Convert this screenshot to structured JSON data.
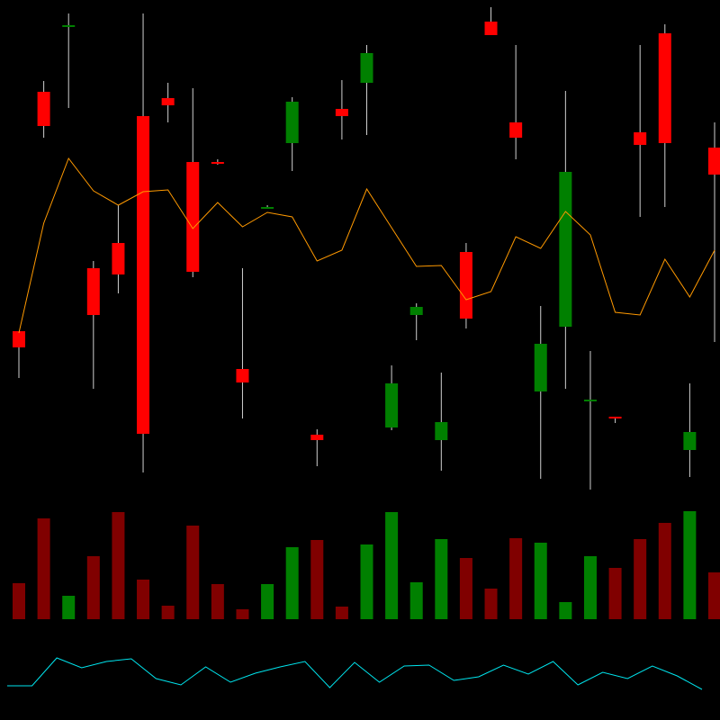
{
  "chart_data": [
    {
      "type": "candlestick",
      "open": [
        432,
        698,
        772,
        502,
        530,
        671,
        691,
        620,
        620,
        390,
        569,
        641,
        317,
        679,
        708,
        325,
        450,
        311,
        520,
        776,
        664,
        365,
        437,
        354,
        337,
        653,
        763,
        300,
        636
      ],
      "high": [
        432,
        710,
        785,
        510,
        572,
        785,
        708,
        702,
        623,
        502,
        572,
        692,
        323,
        711,
        750,
        394,
        463,
        386,
        530,
        792,
        750,
        460,
        699,
        410,
        337,
        750,
        773,
        374,
        664
      ],
      "low": [
        380,
        647,
        680,
        368,
        474,
        275,
        664,
        492,
        617,
        335,
        568,
        610,
        282,
        645,
        650,
        322,
        422,
        277,
        435,
        761,
        623,
        268,
        368,
        256,
        330,
        559,
        570,
        270,
        420
      ],
      "close": [
        414,
        660,
        772,
        450,
        495,
        318,
        683,
        498,
        618,
        375,
        570,
        687,
        311,
        671,
        741,
        374,
        459,
        331,
        446,
        761,
        647,
        418,
        609,
        356,
        335,
        639,
        641,
        320,
        606
      ],
      "up_color": "#008000",
      "down_color": "#ff0000",
      "wick_color": "#d0d0d0",
      "ylim": [
        250,
        800
      ],
      "line": {
        "color": "#ff9900",
        "values": [
          430,
          552,
          624,
          588,
          572,
          587,
          589,
          546,
          575,
          548,
          564,
          559,
          510,
          522,
          590,
          547,
          504,
          505,
          467,
          476,
          537,
          524,
          565,
          539,
          453,
          450,
          512,
          470,
          522
        ]
      }
    },
    {
      "type": "bar",
      "values": [
        40,
        112,
        26,
        70,
        119,
        44,
        15,
        104,
        39,
        11,
        39,
        80,
        88,
        14,
        83,
        119,
        41,
        89,
        68,
        34,
        90,
        85,
        19,
        70,
        57,
        89,
        107,
        120,
        52
      ],
      "up_color": "#008000",
      "down_color": "#800000",
      "ylim": [
        0,
        130
      ]
    },
    {
      "type": "line",
      "values": [
        38,
        38,
        69,
        58,
        65,
        68,
        46,
        39,
        59,
        42,
        52,
        59,
        65,
        36,
        64,
        42,
        60,
        61,
        44,
        48,
        61,
        51,
        65,
        39,
        53,
        46,
        60,
        49,
        34
      ],
      "color": "#00e5ee",
      "ylim": [
        30,
        90
      ]
    }
  ]
}
